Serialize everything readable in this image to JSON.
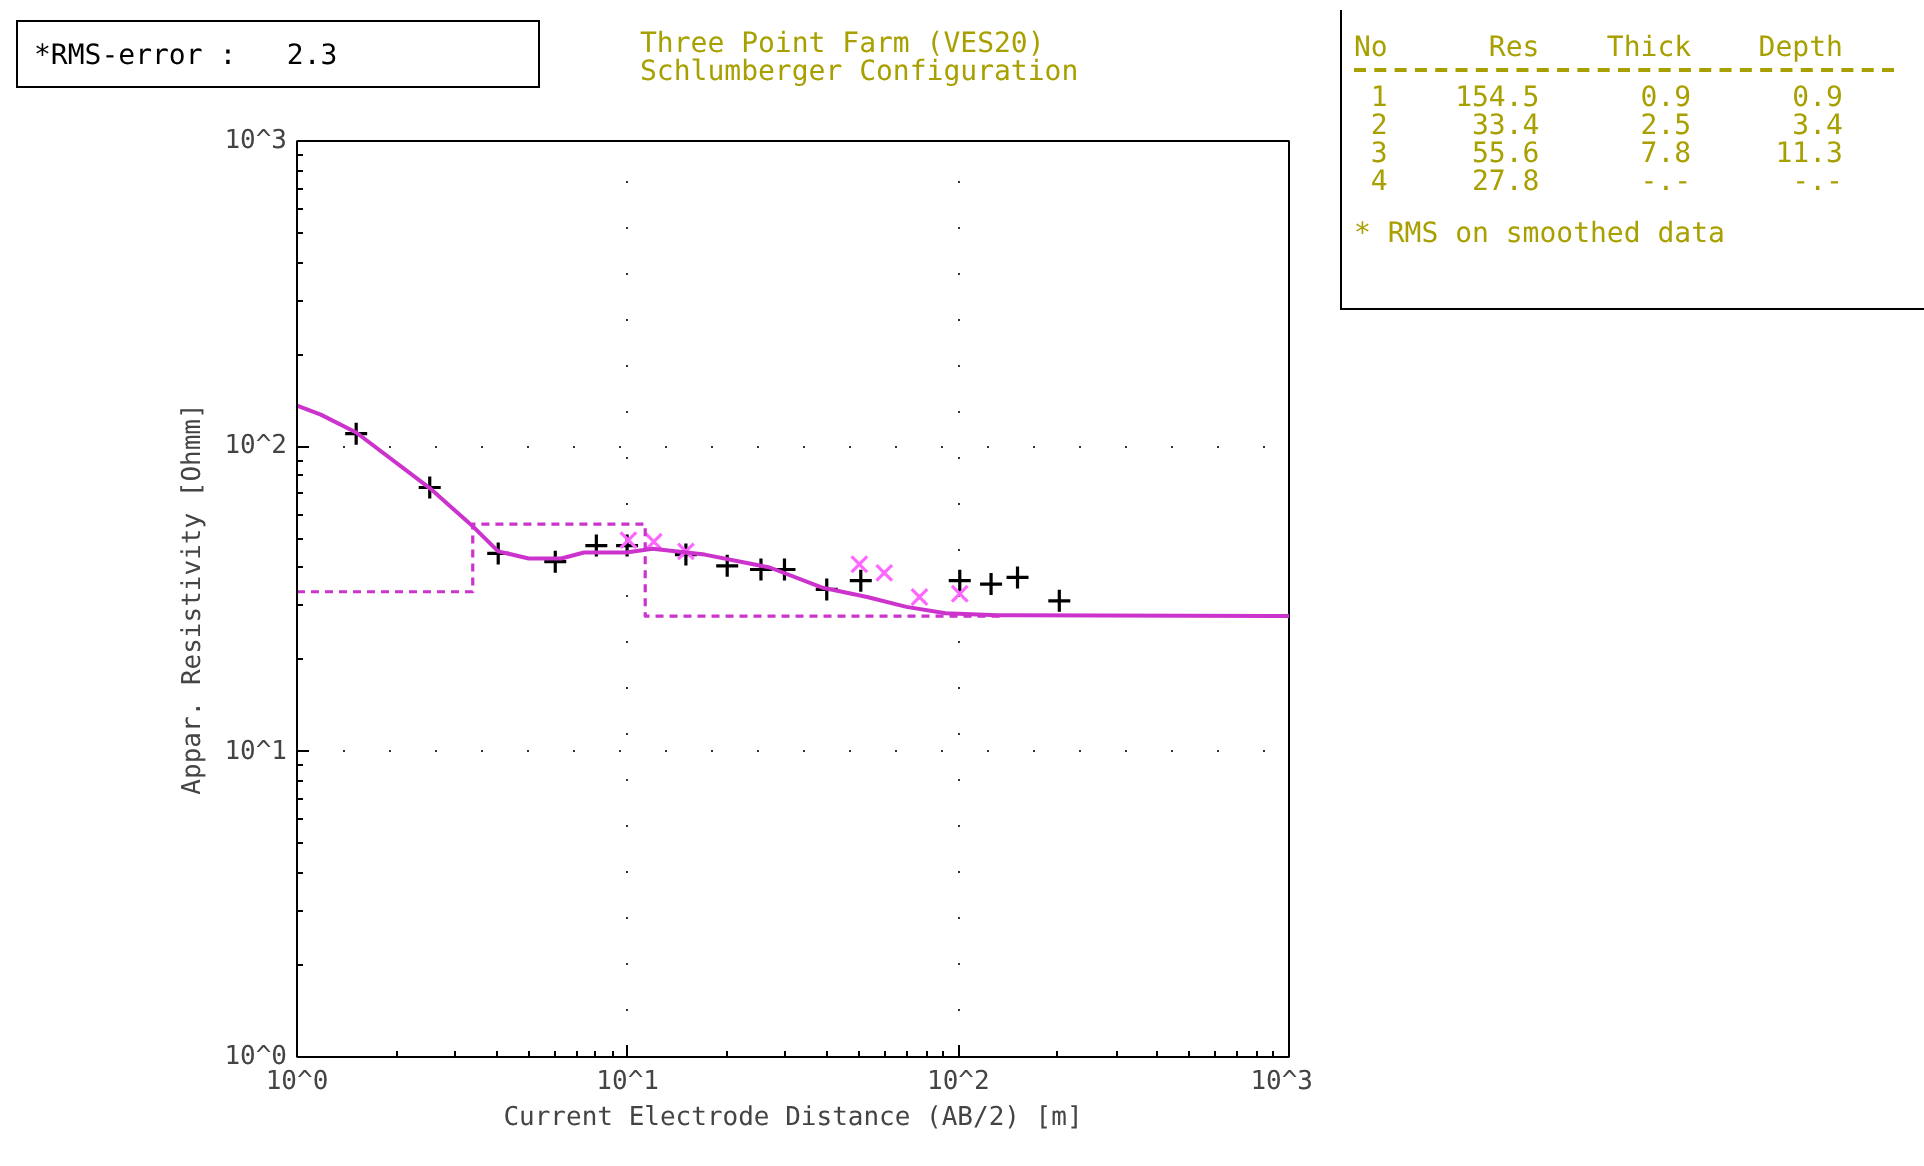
{
  "chart_data": {
    "type": "scatter",
    "title": "Three Point Farm (VES20)",
    "subtitle": "Schlumberger Configuration",
    "xlabel": "Current Electrode Distance (AB/2) [m]",
    "ylabel": "Appar. Resistivity [Ohmm]",
    "log": "xy",
    "xlim": [
      1,
      1000
    ],
    "ylim": [
      1,
      1000
    ],
    "xticks": [
      {
        "value": 1,
        "label": "10^0"
      },
      {
        "value": 10,
        "label": "10^1"
      },
      {
        "value": 100,
        "label": "10^2"
      },
      {
        "value": 1000,
        "label": "10^3"
      }
    ],
    "yticks": [
      {
        "value": 1,
        "label": "10^0"
      },
      {
        "value": 10,
        "label": "10^1"
      },
      {
        "value": 100,
        "label": "10^2"
      },
      {
        "value": 1000,
        "label": "10^3"
      }
    ],
    "grid": true,
    "annotations": [
      "*RMS-error :   2.3",
      "No      Res    Thick    Depth",
      " 1    154.5      0.9      0.9",
      " 2     33.4      2.5      3.4",
      " 3     55.6      7.8     11.3",
      " 4     27.8      -.-      -.-",
      "* RMS on smoothed data"
    ],
    "series": [
      {
        "type": "scatter",
        "marker": "cross",
        "color": "#000000",
        "x": [
          1.51,
          2.52,
          4.06,
          6.04,
          8.04,
          9.96,
          15.0,
          20.0,
          25.3,
          29.8,
          40.0,
          50.7,
          101,
          125.6,
          151,
          202
        ],
        "values": [
          110,
          73.3,
          44.6,
          41.9,
          47.3,
          47.3,
          44.2,
          40.6,
          39.5,
          39.5,
          34.0,
          36.3,
          36.3,
          35.4,
          37.2,
          31.2
        ]
      },
      {
        "type": "scatter",
        "marker": "x",
        "color": "#ff66ff",
        "x": [
          10.05,
          12.0,
          15.0,
          50.2,
          59.7,
          76.3,
          101
        ],
        "values": [
          49.3,
          48.7,
          45.3,
          41.1,
          38.5,
          32.1,
          32.9
        ]
      },
      {
        "type": "line",
        "line_style": "solid",
        "color": "#cc33cc",
        "x": [
          1.0,
          1.18,
          1.51,
          2.52,
          3.42,
          4.06,
          5.02,
          6.3,
          7.38,
          9.9,
          11.9,
          17.1,
          26.9,
          38.6,
          53.0,
          69.7,
          91.5,
          131,
          1000
        ],
        "values": [
          136,
          127,
          111,
          73,
          54.4,
          45.3,
          42.9,
          42.9,
          44.9,
          44.9,
          46.2,
          44.2,
          40.1,
          34.5,
          32.1,
          29.8,
          28.4,
          28.0,
          27.8
        ]
      },
      {
        "type": "line",
        "line_style": "dashed",
        "color": "#cc33cc",
        "x": [
          1,
          3.4,
          3.4,
          11.3,
          11.3,
          137
        ],
        "values": [
          33.4,
          33.4,
          55.6,
          55.6,
          27.8,
          27.8
        ]
      }
    ]
  }
}
